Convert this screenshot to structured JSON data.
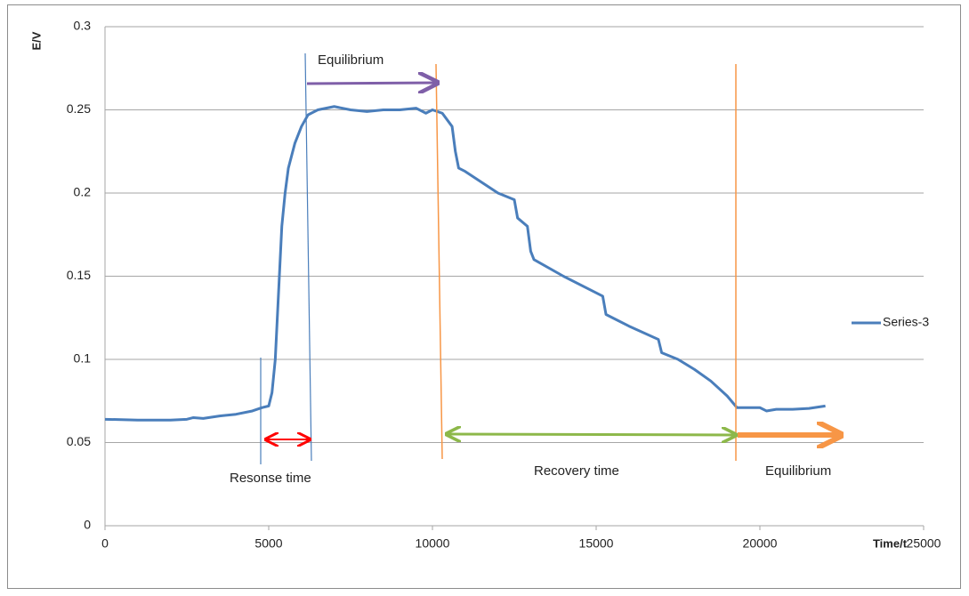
{
  "chart_data": {
    "type": "line",
    "x_label": "Time/t",
    "y_label": "E/V",
    "x": [
      0,
      1000,
      2000,
      2500,
      2700,
      3000,
      3500,
      4000,
      4500,
      4800,
      5000,
      5100,
      5200,
      5300,
      5400,
      5500,
      5600,
      5800,
      6000,
      6200,
      6500,
      7000,
      7500,
      8000,
      8500,
      9000,
      9500,
      9800,
      10000,
      10300,
      10600,
      10700,
      10800,
      11000,
      12000,
      12500,
      12600,
      12900,
      13000,
      13100,
      14000,
      15000,
      15200,
      15300,
      15500,
      16000,
      16900,
      17000,
      17500,
      18000,
      18500,
      19000,
      19300,
      20000,
      20200,
      20500,
      21000,
      21500,
      22000
    ],
    "series": [
      {
        "name": "Series-3",
        "color": "#4a7ebb",
        "values": [
          0.064,
          0.0635,
          0.0635,
          0.064,
          0.065,
          0.0645,
          0.066,
          0.067,
          0.069,
          0.071,
          0.072,
          0.08,
          0.1,
          0.14,
          0.18,
          0.2,
          0.215,
          0.23,
          0.24,
          0.247,
          0.25,
          0.252,
          0.25,
          0.249,
          0.25,
          0.25,
          0.251,
          0.248,
          0.25,
          0.248,
          0.24,
          0.225,
          0.215,
          0.213,
          0.2,
          0.196,
          0.185,
          0.18,
          0.165,
          0.16,
          0.15,
          0.14,
          0.138,
          0.127,
          0.125,
          0.12,
          0.112,
          0.104,
          0.1,
          0.094,
          0.087,
          0.078,
          0.071,
          0.071,
          0.069,
          0.07,
          0.07,
          0.0705,
          0.072
        ]
      }
    ],
    "xlim": [
      0,
      25000
    ],
    "xticks": [
      0,
      5000,
      10000,
      15000,
      20000,
      25000
    ],
    "ylim": [
      0,
      0.3
    ],
    "yticks": [
      0,
      0.05,
      0.1,
      0.15,
      0.2,
      0.25,
      0.3
    ],
    "grid": true,
    "legend": "right",
    "annotations": [
      "Equilibrium",
      "Resonse time",
      "Recovery time",
      "Equilibrium"
    ]
  }
}
